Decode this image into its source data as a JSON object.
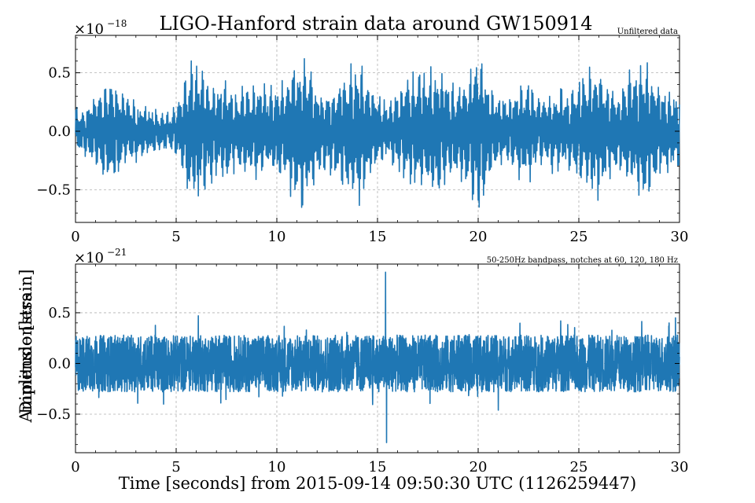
{
  "chart_data": {
    "type": "line",
    "title": "LIGO-Hanford strain data around GW150914",
    "xlabel": "Time [seconds] from 2015-09-14 09:50:30 UTC (1126259447)",
    "ylabel_overlap": [
      "Amplitude [strain]",
      "Dimensionless"
    ],
    "color": "#1f77b4",
    "grid": true,
    "panels": [
      {
        "id": "unfiltered",
        "annotation": "Unfiltered data",
        "scale_label": "×10",
        "scale_exponent": "−18",
        "xlim": [
          0,
          30
        ],
        "ylim": [
          -0.78,
          0.82
        ],
        "x_ticks": [
          0,
          5,
          10,
          15,
          20,
          25,
          30
        ],
        "x_tick_labels": [
          "0",
          "5",
          "10",
          "15",
          "20",
          "25",
          "30"
        ],
        "y_ticks": [
          -0.5,
          0.0,
          0.5
        ],
        "y_tick_labels": [
          "−0.5",
          "0.0",
          "0.5"
        ],
        "series": [
          {
            "values_description_sampled": true,
            "x": [
              0.0,
              0.5,
              1.0,
              1.5,
              2.0,
              2.5,
              3.0,
              3.5,
              4.0,
              4.5,
              5.0,
              5.5,
              6.0,
              6.5,
              7.0,
              7.5,
              8.0,
              8.5,
              9.0,
              9.5,
              10.0,
              10.5,
              11.0,
              11.5,
              12.0,
              12.5,
              13.0,
              13.5,
              14.0,
              14.5,
              15.0,
              15.5,
              16.0,
              16.5,
              17.0,
              17.5,
              18.0,
              18.5,
              19.0,
              19.5,
              20.0,
              20.5,
              21.0,
              21.5,
              22.0,
              22.5,
              23.0,
              23.5,
              24.0,
              24.5,
              25.0,
              25.5,
              26.0,
              26.5,
              27.0,
              27.5,
              28.0,
              28.5,
              29.0,
              29.5,
              30.0
            ],
            "envelope": [
              0.18,
              0.2,
              0.35,
              0.42,
              0.45,
              0.3,
              0.25,
              0.2,
              0.2,
              0.15,
              0.2,
              0.5,
              0.7,
              0.5,
              0.42,
              0.45,
              0.35,
              0.4,
              0.45,
              0.35,
              0.4,
              0.5,
              0.65,
              0.6,
              0.4,
              0.35,
              0.4,
              0.55,
              0.65,
              0.5,
              0.3,
              0.25,
              0.35,
              0.5,
              0.5,
              0.55,
              0.6,
              0.45,
              0.35,
              0.55,
              0.75,
              0.4,
              0.3,
              0.3,
              0.4,
              0.45,
              0.3,
              0.3,
              0.35,
              0.35,
              0.45,
              0.55,
              0.6,
              0.4,
              0.35,
              0.5,
              0.6,
              0.55,
              0.4,
              0.35,
              0.3
            ]
          }
        ]
      },
      {
        "id": "bandpassed",
        "annotation": "50-250Hz bandpass, notches at 60, 120, 180 Hz",
        "scale_label": "×10",
        "scale_exponent": "−21",
        "xlim": [
          0,
          30
        ],
        "ylim": [
          -0.88,
          0.98
        ],
        "x_ticks": [
          0,
          5,
          10,
          15,
          20,
          25,
          30
        ],
        "x_tick_labels": [
          "0",
          "5",
          "10",
          "15",
          "20",
          "25",
          "30"
        ],
        "y_ticks": [
          -0.5,
          0.0,
          0.5
        ],
        "y_tick_labels": [
          "−0.5",
          "0.0",
          "0.5"
        ],
        "series": [
          {
            "values_description_sampled": true,
            "baseline_amplitude": 0.28,
            "spikes": [
              {
                "x": 6.1,
                "y": 0.47
              },
              {
                "x": 15.4,
                "y": 0.9
              },
              {
                "x": 15.45,
                "y": -0.78
              },
              {
                "x": 21.0,
                "y": -0.46
              },
              {
                "x": 24.1,
                "y": 0.42
              },
              {
                "x": 29.8,
                "y": 0.45
              }
            ]
          }
        ]
      }
    ]
  }
}
